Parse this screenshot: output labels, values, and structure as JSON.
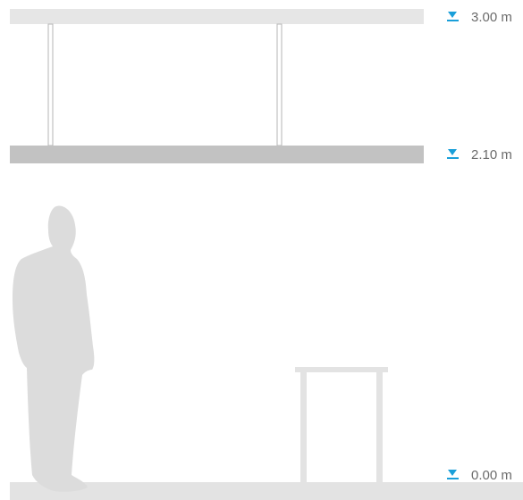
{
  "diagram": {
    "levels": [
      {
        "label": "3.00 m",
        "marker_icon": "level-marker-icon"
      },
      {
        "label": "2.10 m",
        "marker_icon": "level-marker-icon"
      },
      {
        "label": "0.00 m",
        "marker_icon": "level-marker-icon"
      }
    ],
    "colors": {
      "ceiling": "#e6e6e6",
      "suspended_panel": "#c2c2c2",
      "floor": "#e3e3e3",
      "figure": "#dcdcdc",
      "table": "#e3e3e3",
      "marker": "#1a9fd9",
      "label": "#6b6b6b"
    }
  }
}
